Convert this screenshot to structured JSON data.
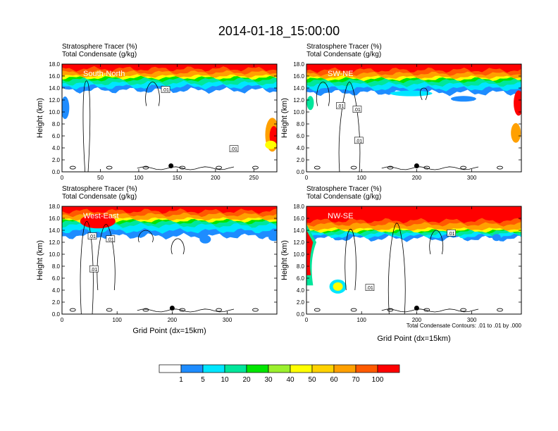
{
  "title": "2014-01-18_15:00:00",
  "chart_data": [
    {
      "type": "heatmap",
      "panel_label": "South-North",
      "title_lines": [
        "Stratosphere Tracer   (%)",
        "Total Condensate   (g/kg)"
      ],
      "ylabel": "Height (km)",
      "xlabel": "",
      "xlim": [
        0,
        280
      ],
      "ylim": [
        0,
        18
      ],
      "xticks": [
        0,
        50,
        100,
        150,
        200,
        250
      ],
      "yticks": [
        0,
        2,
        4,
        6,
        8,
        10,
        12,
        14,
        16,
        18
      ],
      "ytick_labels": [
        "0.0",
        "2.0",
        "4.0",
        "6.0",
        "8.0",
        "10.0",
        "12.0",
        "14.0",
        "16.0",
        "18.0"
      ],
      "tracer_band": {
        "top_km": 18,
        "red_bottom_km": 16.6,
        "orange_bottom_km": 16.0,
        "green_bottom_km": 14.8,
        "blue_bottom_km": 13.6
      },
      "contour_labels": [
        {
          "x": 135,
          "y": 13.7,
          "text": ".01"
        },
        {
          "x": 224,
          "y": 3.8,
          "text": ".01"
        }
      ],
      "marker": {
        "x": 142,
        "y": 1.0
      }
    },
    {
      "type": "heatmap",
      "panel_label": "SW-NE",
      "title_lines": [
        "Stratosphere Tracer   (%)",
        "Total Condensate   (g/kg)"
      ],
      "ylabel": "Height (km)",
      "xlabel": "",
      "xlim": [
        0,
        390
      ],
      "ylim": [
        0,
        18
      ],
      "xticks": [
        0,
        100,
        200,
        300
      ],
      "yticks": [
        0,
        2,
        4,
        6,
        8,
        10,
        12,
        14,
        16,
        18
      ],
      "ytick_labels": [
        "0.0",
        "2.0",
        "4.0",
        "6.0",
        "8.0",
        "10.0",
        "12.0",
        "14.0",
        "16.0",
        "18.0"
      ],
      "tracer_band": {
        "top_km": 18,
        "red_bottom_km": 16.4,
        "orange_bottom_km": 15.8,
        "green_bottom_km": 14.6,
        "blue_bottom_km": 13.2
      },
      "contour_labels": [
        {
          "x": 62,
          "y": 11.0,
          "text": ".01"
        },
        {
          "x": 92,
          "y": 10.4,
          "text": ".01"
        },
        {
          "x": 95,
          "y": 5.2,
          "text": ".01"
        }
      ],
      "marker": {
        "x": 200,
        "y": 1.0
      }
    },
    {
      "type": "heatmap",
      "panel_label": "West-East",
      "title_lines": [
        "Stratosphere Tracer   (%)",
        "Total Condensate   (g/kg)"
      ],
      "ylabel": "Height (km)",
      "xlabel": "Grid Point (dx=15km)",
      "xlim": [
        0,
        390
      ],
      "ylim": [
        0,
        18
      ],
      "xticks": [
        0,
        100,
        200,
        300
      ],
      "yticks": [
        0,
        2,
        4,
        6,
        8,
        10,
        12,
        14,
        16,
        18
      ],
      "ytick_labels": [
        "0.0",
        "2.0",
        "4.0",
        "6.0",
        "8.0",
        "10.0",
        "12.0",
        "14.0",
        "16.0",
        "18.0"
      ],
      "tracer_band": {
        "top_km": 18,
        "red_bottom_km": 16.6,
        "orange_bottom_km": 15.9,
        "green_bottom_km": 14.8,
        "blue_bottom_km": 13.0
      },
      "contour_labels": [
        {
          "x": 55,
          "y": 13.0,
          "text": ".01"
        },
        {
          "x": 88,
          "y": 12.5,
          "text": ".01"
        },
        {
          "x": 58,
          "y": 7.5,
          "text": ".01"
        }
      ],
      "marker": {
        "x": 200,
        "y": 1.0
      }
    },
    {
      "type": "heatmap",
      "panel_label": "NW-SE",
      "title_lines": [
        "Stratosphere Tracer   (%)",
        "Total Condensate   (g/kg)"
      ],
      "ylabel": "Height (km)",
      "xlabel": "Grid Point (dx=15km)",
      "xlim": [
        0,
        390
      ],
      "ylim": [
        0,
        18
      ],
      "xticks": [
        0,
        100,
        200,
        300
      ],
      "yticks": [
        0,
        2,
        4,
        6,
        8,
        10,
        12,
        14,
        16,
        18
      ],
      "ytick_labels": [
        "0.0",
        "2.0",
        "4.0",
        "6.0",
        "8.0",
        "10.0",
        "12.0",
        "14.0",
        "16.0",
        "18.0"
      ],
      "tracer_band": {
        "top_km": 18,
        "red_bottom_km": 15.0,
        "orange_bottom_km": 14.2,
        "green_bottom_km": 13.4,
        "blue_bottom_km": 12.6
      },
      "contour_labels": [
        {
          "x": 115,
          "y": 4.4,
          "text": ".01"
        },
        {
          "x": 263,
          "y": 13.5,
          "text": ".01"
        }
      ],
      "marker": {
        "x": 200,
        "y": 1.0
      },
      "info_note": "Total Condensate Contours: .01 to .01 by .000"
    }
  ],
  "legend": {
    "colors": [
      "#ffffff",
      "#1e8cff",
      "#00e6ff",
      "#00e69b",
      "#00e600",
      "#9bf02d",
      "#ffff00",
      "#ffd200",
      "#ffa000",
      "#ff5a00",
      "#ff0000"
    ],
    "labels": [
      "1",
      "5",
      "10",
      "20",
      "30",
      "40",
      "50",
      "60",
      "70",
      "100"
    ]
  }
}
